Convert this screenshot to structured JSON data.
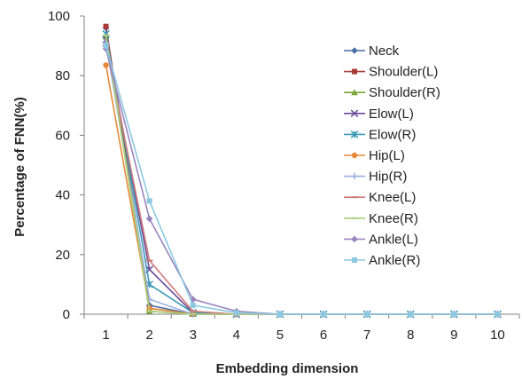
{
  "chart_data": {
    "type": "line",
    "xlabel": "Embedding dimension",
    "ylabel": "Percentage of FNN(%)",
    "x": [
      1,
      2,
      3,
      4,
      5,
      6,
      7,
      8,
      9,
      10
    ],
    "xlim": [
      0.5,
      10.5
    ],
    "ylim": [
      0,
      100
    ],
    "yticks": [
      0,
      20,
      40,
      60,
      80,
      100
    ],
    "grid": false,
    "legend_position": "top-right",
    "series": [
      {
        "name": "Neck",
        "color": "#4a6fa5",
        "marker": "diamond",
        "values": [
          96,
          3,
          0,
          0,
          0,
          0,
          0,
          0,
          0,
          0
        ]
      },
      {
        "name": "Shoulder(L)",
        "color": "#a83a3a",
        "marker": "square",
        "values": [
          96.5,
          2,
          0,
          0,
          0,
          0,
          0,
          0,
          0,
          0
        ]
      },
      {
        "name": "Shoulder(R)",
        "color": "#7aa33a",
        "marker": "triangle",
        "values": [
          93,
          1,
          0,
          0,
          0,
          0,
          0,
          0,
          0,
          0
        ]
      },
      {
        "name": "Elow(L)",
        "color": "#6a4a9a",
        "marker": "x",
        "values": [
          92,
          15,
          0.5,
          0,
          0,
          0,
          0,
          0,
          0,
          0
        ]
      },
      {
        "name": "Elow(R)",
        "color": "#3a9ab8",
        "marker": "star",
        "values": [
          94,
          10,
          0.5,
          0,
          0,
          0,
          0,
          0,
          0,
          0
        ]
      },
      {
        "name": "Hip(L)",
        "color": "#e58a3a",
        "marker": "circle",
        "values": [
          83.5,
          2,
          0,
          0,
          0,
          0,
          0,
          0,
          0,
          0
        ]
      },
      {
        "name": "Hip(R)",
        "color": "#9ab0e0",
        "marker": "plus",
        "values": [
          91,
          5,
          0,
          0,
          0,
          0,
          0,
          0,
          0,
          0
        ]
      },
      {
        "name": "Knee(L)",
        "color": "#d07a7a",
        "marker": "dash",
        "values": [
          90,
          18,
          1,
          0,
          0,
          0,
          0,
          0,
          0,
          0
        ]
      },
      {
        "name": "Knee(R)",
        "color": "#a8d07a",
        "marker": "dash",
        "values": [
          93.5,
          1,
          0,
          0,
          0,
          0,
          0,
          0,
          0,
          0
        ]
      },
      {
        "name": "Ankle(L)",
        "color": "#9a84c0",
        "marker": "diamond",
        "values": [
          89,
          32,
          5,
          1,
          0,
          0,
          0,
          0,
          0,
          0
        ]
      },
      {
        "name": "Ankle(R)",
        "color": "#8cc8e0",
        "marker": "square",
        "values": [
          90,
          38,
          3,
          0.5,
          0,
          0,
          0,
          0,
          0,
          0
        ]
      }
    ]
  }
}
